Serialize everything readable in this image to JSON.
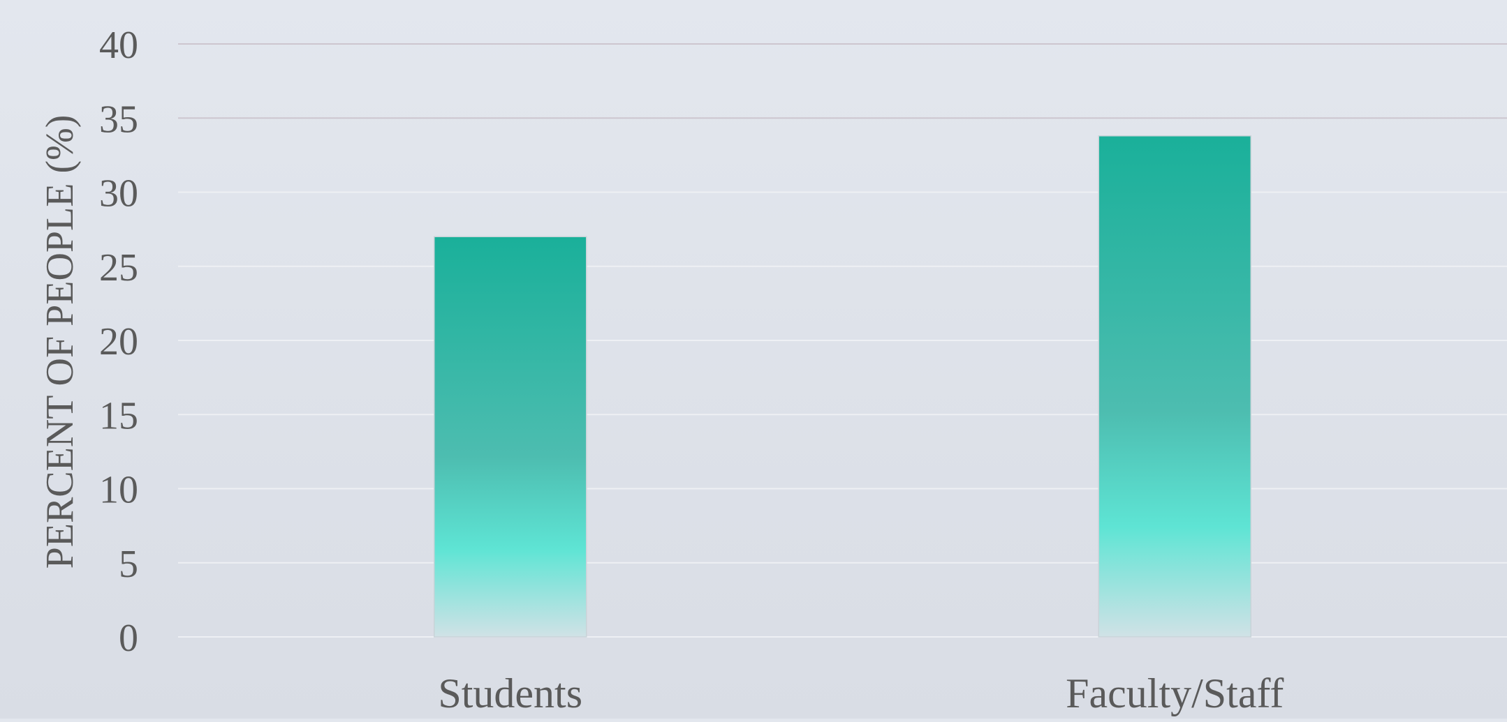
{
  "chart_data": {
    "type": "bar",
    "title": "",
    "xlabel": "",
    "ylabel": "PERCENT OF PEOPLE (%)",
    "categories": [
      "Students",
      "Faculty/Staff"
    ],
    "values": [
      27,
      33.8
    ],
    "ylim": [
      0,
      40
    ],
    "yticks": [
      "0",
      "5",
      "10",
      "15",
      "20",
      "25",
      "30",
      "35",
      "40"
    ],
    "grid": true,
    "legend": "none"
  },
  "colors": {
    "bar_top": "#1ab09a",
    "bar_mid": "#4dbdb0",
    "bar_bright": "#5ee4d4",
    "bar_bottom": "#d0e2e6",
    "text": "#5a5a5a",
    "grid_major": "#cdc6cf",
    "grid_minor": "#eef0f4"
  }
}
